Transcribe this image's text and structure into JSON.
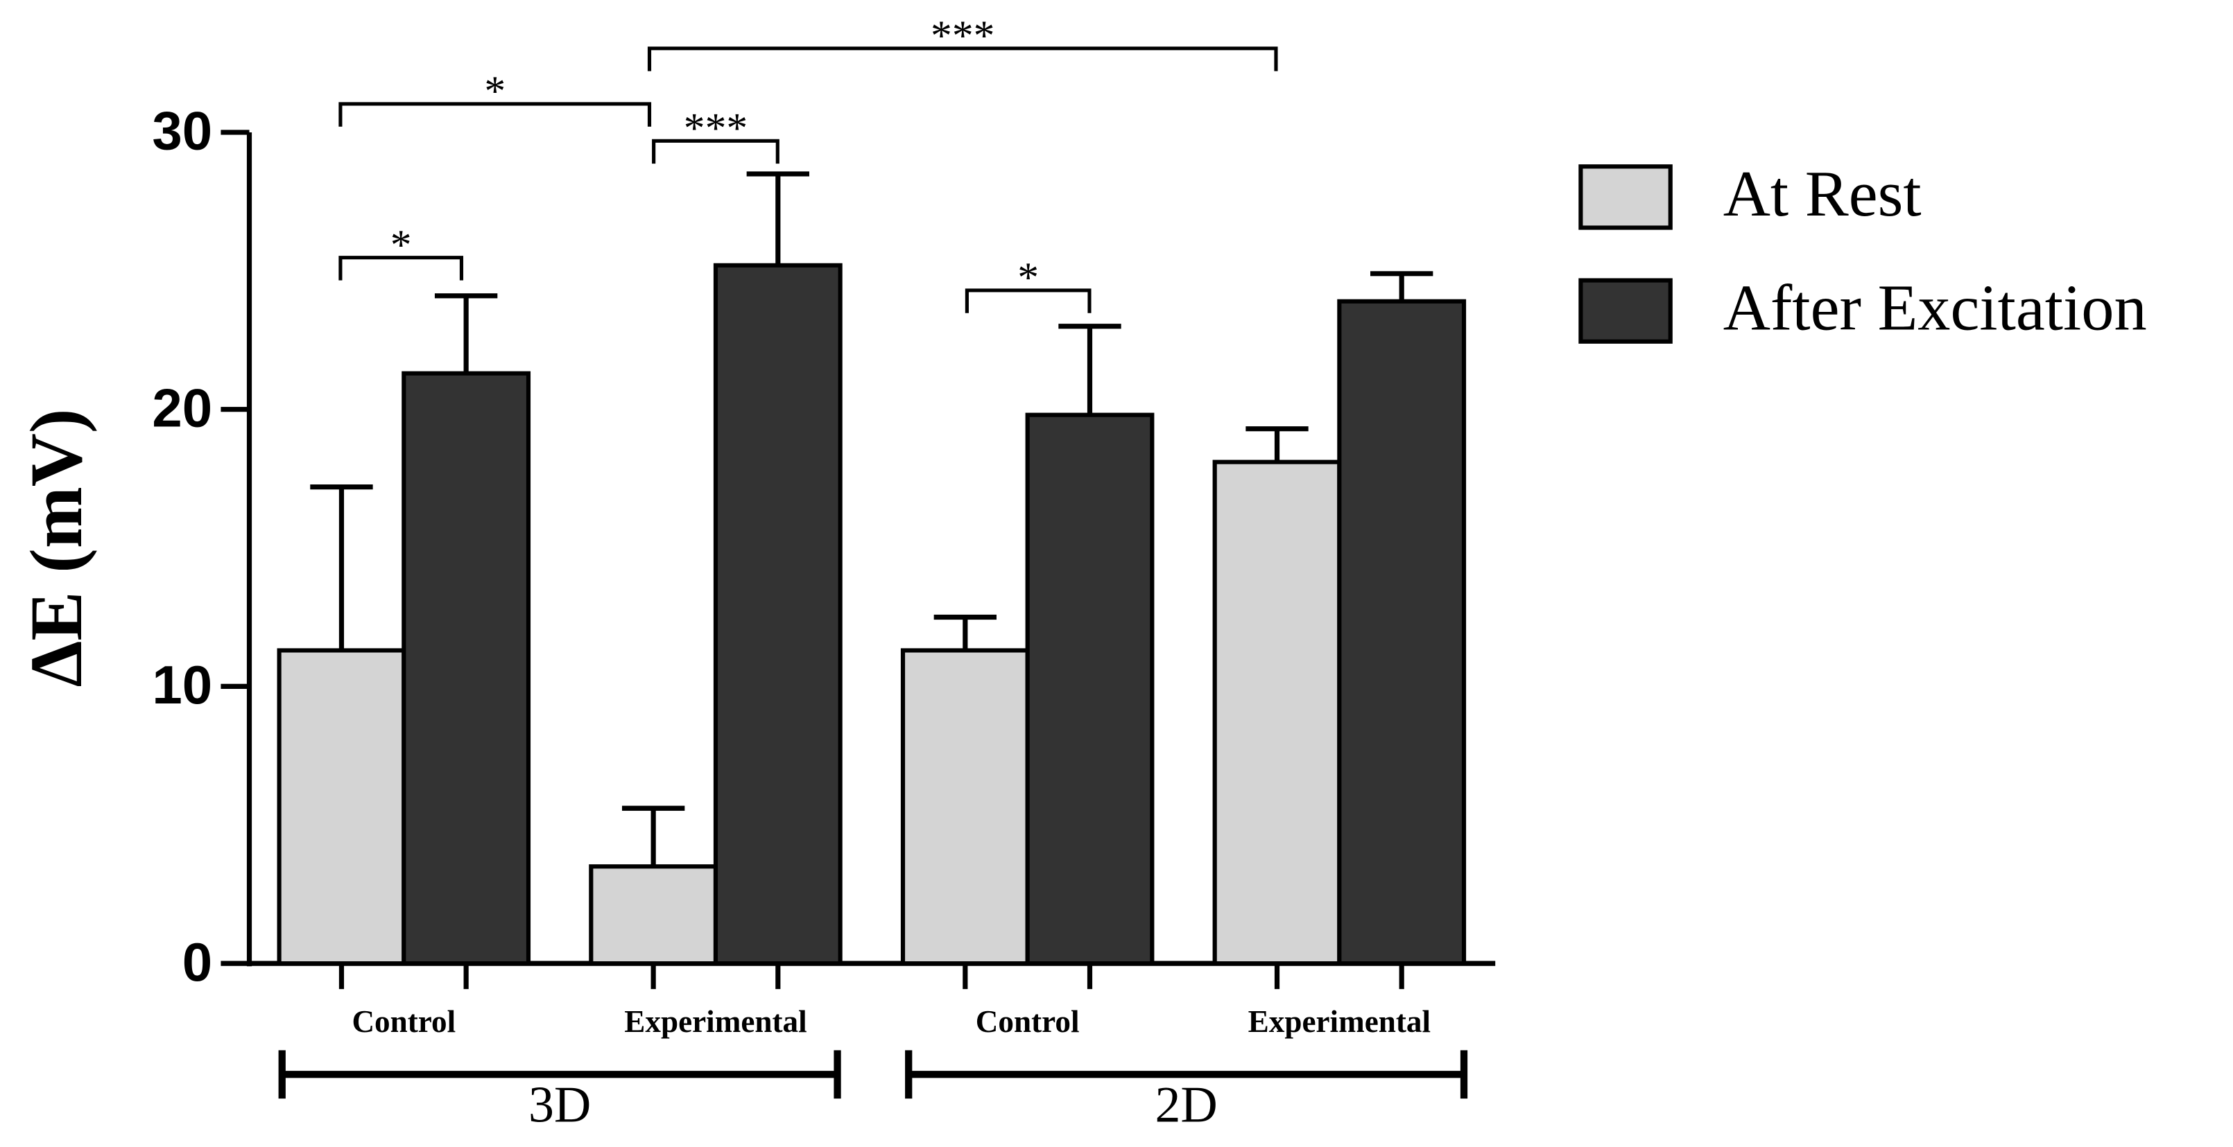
{
  "chart_data": {
    "type": "bar",
    "y_label": "ΔE (mV)",
    "categories": [
      "Control",
      "Experimental",
      "Control",
      "Experimental"
    ],
    "groups": [
      "3D",
      "2D"
    ],
    "series": [
      {
        "name": "At Rest",
        "color": "#d4d4d4",
        "values": [
          11.3,
          3.5,
          11.3,
          18.1
        ],
        "errors": [
          5.9,
          2.1,
          1.2,
          1.2
        ]
      },
      {
        "name": "After Excitation",
        "color": "#333333",
        "values": [
          21.3,
          25.2,
          19.8,
          23.9
        ],
        "errors": [
          2.8,
          3.3,
          3.2,
          1.0
        ]
      }
    ],
    "ylim": [
      0,
      30
    ],
    "yticks": [
      0,
      10,
      20,
      30
    ],
    "significance": [
      "*",
      "*",
      "***",
      "***",
      "*"
    ]
  }
}
